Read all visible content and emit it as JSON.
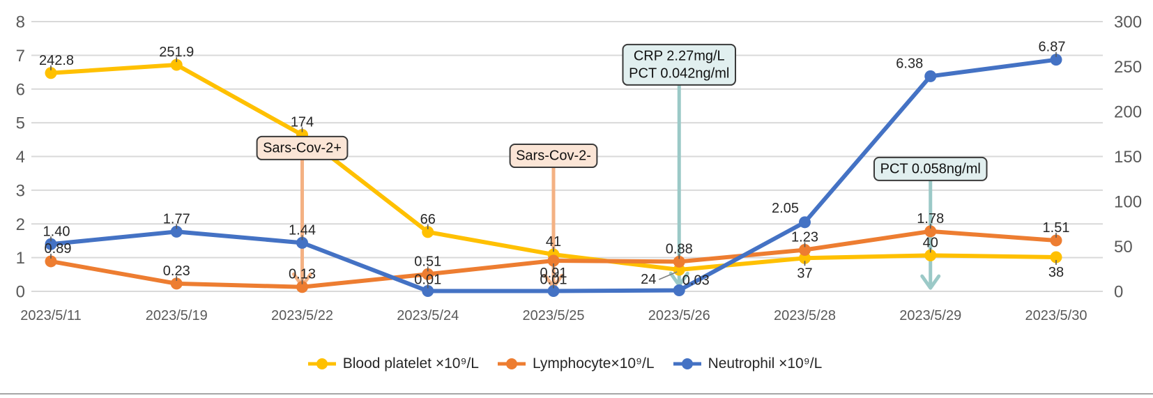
{
  "chart_data": {
    "type": "line",
    "title": "",
    "categories": [
      "2023/5/11",
      "2023/5/19",
      "2023/5/22",
      "2023/5/24",
      "2023/5/25",
      "2023/5/26",
      "2023/5/28",
      "2023/5/29",
      "2023/5/30"
    ],
    "left_axis": {
      "min": 0,
      "max": 8,
      "step": 1,
      "ticks": [
        8,
        7,
        6,
        5,
        4,
        3,
        2,
        1,
        0
      ]
    },
    "right_axis": {
      "min": 0,
      "max": 300,
      "step": 50,
      "ticks": [
        300,
        250,
        200,
        150,
        100,
        50,
        0
      ]
    },
    "grid": true,
    "legend_position": "bottom",
    "series": [
      {
        "name": "Blood platelet ×10⁹/L",
        "color": "#FFC000",
        "axis": "right",
        "values": [
          242.8,
          251.9,
          174,
          66,
          41,
          24,
          37,
          40,
          38
        ],
        "labels": [
          "242.8",
          "251.9",
          "174",
          "66",
          "41",
          "24",
          "37",
          "40",
          "38"
        ],
        "label_offsets": [
          [
            8,
            -12
          ],
          [
            0,
            -12
          ],
          [
            0,
            -12
          ],
          [
            0,
            -12
          ],
          [
            0,
            -12
          ],
          [
            -44,
            20
          ],
          [
            0,
            28
          ],
          [
            0,
            -12
          ],
          [
            0,
            28
          ]
        ],
        "label_leaders": [
          false,
          false,
          false,
          false,
          false,
          true,
          false,
          false,
          false
        ]
      },
      {
        "name": "Lymphocyte×10⁹/L",
        "color": "#ED7D31",
        "axis": "left",
        "values": [
          0.89,
          0.23,
          0.13,
          0.51,
          0.91,
          0.88,
          1.23,
          1.78,
          1.51
        ],
        "labels": [
          "0.89",
          "0.23",
          "0.13",
          "0.51",
          "0.91",
          "0.88",
          "1.23",
          "1.78",
          "1.51"
        ],
        "label_offsets": [
          [
            10,
            -12
          ],
          [
            0,
            -12
          ],
          [
            0,
            -12
          ],
          [
            0,
            -12
          ],
          [
            0,
            24
          ],
          [
            0,
            -12
          ],
          [
            0,
            -12
          ],
          [
            0,
            -12
          ],
          [
            0,
            -12
          ]
        ],
        "label_leaders": [
          false,
          false,
          false,
          false,
          false,
          false,
          false,
          false,
          false
        ]
      },
      {
        "name": "Neutrophil ×10⁹/L",
        "color": "#4472C4",
        "axis": "left",
        "values": [
          1.4,
          1.77,
          1.44,
          0.01,
          0.01,
          0.03,
          2.05,
          6.38,
          6.87
        ],
        "labels": [
          "1.40",
          "1.77",
          "1.44",
          "0.01",
          "0.01",
          "0.03",
          "2.05",
          "6.38",
          "6.87"
        ],
        "label_offsets": [
          [
            8,
            -12
          ],
          [
            0,
            -12
          ],
          [
            0,
            -12
          ],
          [
            0,
            -10
          ],
          [
            0,
            -10
          ],
          [
            24,
            -8
          ],
          [
            -28,
            -14
          ],
          [
            -30,
            -12
          ],
          [
            -6,
            -12
          ]
        ],
        "label_leaders": [
          false,
          false,
          false,
          false,
          false,
          false,
          false,
          false,
          false
        ]
      }
    ],
    "annotations": [
      {
        "id": "sars-cov-2-positive",
        "lines": [
          "Sars-Cov-2+"
        ],
        "category_index": 2,
        "theme": "peach",
        "box_center_value": 4.25,
        "arrow_tip_value": 0.16
      },
      {
        "id": "sars-cov-2-negative",
        "lines": [
          "Sars-Cov-2-"
        ],
        "category_index": 4,
        "theme": "peach",
        "box_center_value": 4.02,
        "arrow_tip_value": 0.12
      },
      {
        "id": "crp-pct-day26",
        "lines": [
          "CRP 2.27mg/L",
          "PCT 0.042ng/ml"
        ],
        "category_index": 5,
        "theme": "teal",
        "box_center_value": 6.72,
        "arrow_tip_value": 0.18
      },
      {
        "id": "pct-day29",
        "lines": [
          "PCT 0.058ng/ml"
        ],
        "category_index": 7,
        "theme": "teal",
        "box_center_value": 3.63,
        "arrow_tip_value": 0.1
      }
    ],
    "colors": {
      "grid": "#D9D9D9",
      "axis_text": "#595959",
      "data_label": "#262626",
      "peach_fill": "#FBE5D6",
      "peach_line": "#F4B183",
      "teal_fill": "#E1EFEF",
      "teal_line": "#9BC9C7",
      "annotation_border": "#3A3A3A",
      "leader": "#808080",
      "divider": "#A6A6A6"
    }
  },
  "legend": {
    "items": [
      {
        "label": "Blood platelet ×10⁹/L"
      },
      {
        "label": "Lymphocyte×10⁹/L"
      },
      {
        "label": "Neutrophil ×10⁹/L"
      }
    ]
  }
}
